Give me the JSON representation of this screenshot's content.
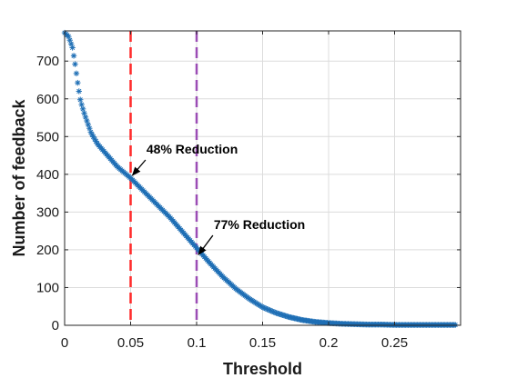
{
  "chart_data": {
    "type": "scatter",
    "xlabel": "Threshold",
    "ylabel": "Number of feedback",
    "xlim": [
      0,
      0.3
    ],
    "ylim": [
      0,
      780
    ],
    "xticks": [
      0,
      0.05,
      0.1,
      0.15,
      0.2,
      0.25
    ],
    "xtick_labels": [
      "0",
      "0.05",
      "0.1",
      "0.15",
      "0.2",
      "0.25"
    ],
    "yticks": [
      0,
      100,
      200,
      300,
      400,
      500,
      600,
      700
    ],
    "ytick_labels": [
      "0",
      "100",
      "200",
      "300",
      "400",
      "500",
      "600",
      "700"
    ],
    "grid": true,
    "marker": "asterisk",
    "series": [
      {
        "color": "#1f6fb5",
        "curve_x": [
          0.0,
          0.003,
          0.006,
          0.008,
          0.01,
          0.012,
          0.015,
          0.018,
          0.02,
          0.025,
          0.03,
          0.035,
          0.04,
          0.045,
          0.05,
          0.06,
          0.07,
          0.08,
          0.09,
          0.1,
          0.11,
          0.12,
          0.13,
          0.14,
          0.15,
          0.16,
          0.17,
          0.18,
          0.19,
          0.2,
          0.21,
          0.22,
          0.23,
          0.24,
          0.25,
          0.26,
          0.27,
          0.28,
          0.29,
          0.3
        ],
        "curve_y": [
          775,
          765,
          735,
          690,
          640,
          595,
          560,
          530,
          510,
          480,
          460,
          440,
          420,
          405,
          390,
          355,
          320,
          285,
          245,
          205,
          165,
          128,
          96,
          70,
          48,
          33,
          22,
          14,
          9,
          6,
          4,
          3,
          2,
          2,
          1,
          1,
          1,
          1,
          1,
          1
        ],
        "n_points": 300
      }
    ],
    "vlines": [
      {
        "x": 0.05,
        "color": "#ff2a2a",
        "style": "dashed"
      },
      {
        "x": 0.1,
        "color": "#9b4db5",
        "style": "dashed"
      }
    ],
    "annotations": [
      {
        "text": "48% Reduction",
        "x": 0.05,
        "y": 390,
        "text_x": 0.062,
        "text_y": 455
      },
      {
        "text": "77% Reduction",
        "x": 0.1,
        "y": 180,
        "text_x": 0.113,
        "text_y": 255
      }
    ]
  }
}
